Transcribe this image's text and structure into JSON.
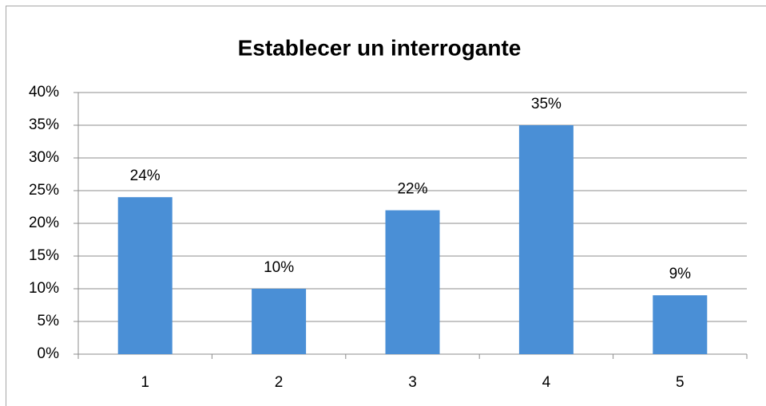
{
  "chart_data": {
    "type": "bar",
    "title": "Establecer un interrogante",
    "categories": [
      "1",
      "2",
      "3",
      "4",
      "5"
    ],
    "values": [
      24,
      10,
      22,
      35,
      9
    ],
    "value_labels": [
      "24%",
      "10%",
      "22%",
      "35%",
      "9%"
    ],
    "color": "#4a8fd6",
    "ylim": [
      0,
      40
    ],
    "yticks": [
      {
        "value": 0,
        "label": "0%"
      },
      {
        "value": 5,
        "label": "5%"
      },
      {
        "value": 10,
        "label": "10%"
      },
      {
        "value": 15,
        "label": "15%"
      },
      {
        "value": 20,
        "label": "20%"
      },
      {
        "value": 25,
        "label": "25%"
      },
      {
        "value": 30,
        "label": "30%"
      },
      {
        "value": 35,
        "label": "35%"
      },
      {
        "value": 40,
        "label": "40%"
      }
    ],
    "grid": true
  }
}
